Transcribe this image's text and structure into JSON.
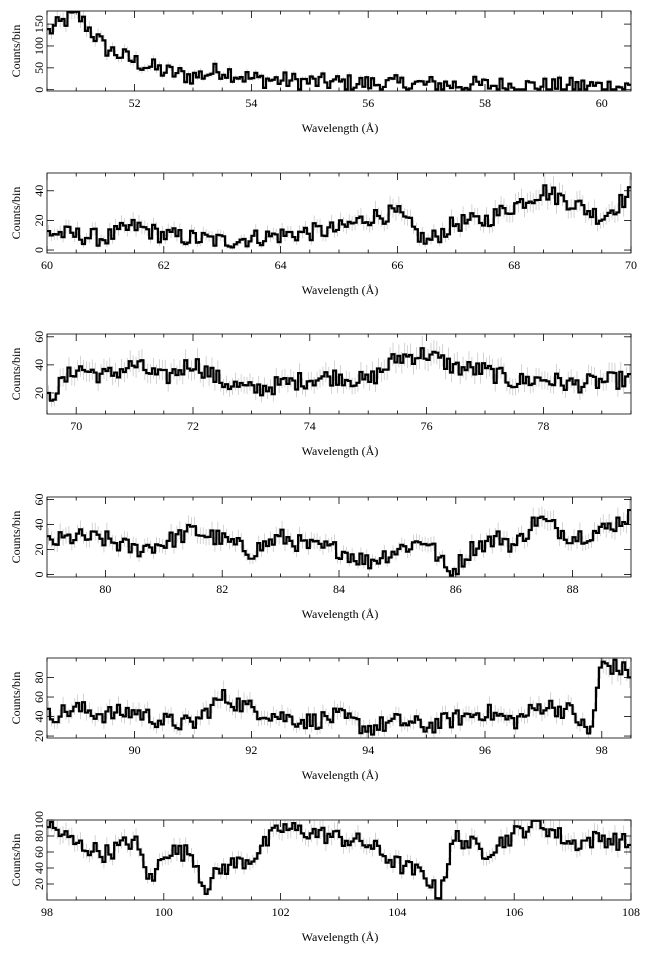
{
  "chart_data": [
    {
      "type": "line",
      "style": "step",
      "xlabel": "Wavelength (Å)",
      "ylabel": "Counts/bin",
      "xlim": [
        50.5,
        60.5
      ],
      "ylim": [
        -3,
        180
      ],
      "xticks": [
        52,
        54,
        56,
        58,
        60
      ],
      "yticks": [
        0,
        50,
        100,
        150
      ],
      "series_color": "#000000",
      "error_color": "#c8c8c8",
      "x": [
        50.5,
        51.0,
        51.5,
        52.0,
        52.5,
        53.0,
        53.5,
        54.0,
        55.0,
        56.0,
        57.0,
        58.0,
        59.0,
        60.0,
        60.5
      ],
      "y": [
        130,
        175,
        95,
        65,
        42,
        30,
        45,
        25,
        18,
        14,
        12,
        10,
        8,
        8,
        6
      ]
    },
    {
      "type": "line",
      "style": "step",
      "xlabel": "Wavelength (Å)",
      "ylabel": "Counts/bin",
      "xlim": [
        60,
        70
      ],
      "ylim": [
        -2,
        52
      ],
      "xticks": [
        60,
        62,
        64,
        66,
        68,
        70
      ],
      "yticks": [
        0,
        20,
        40
      ],
      "series_color": "#000000",
      "error_color": "#c8c8c8",
      "x": [
        60.0,
        61.0,
        61.5,
        62.0,
        63.0,
        63.5,
        64.0,
        65.0,
        65.5,
        66.0,
        66.5,
        67.0,
        67.5,
        68.0,
        68.5,
        69.0,
        69.5,
        70.0
      ],
      "y": [
        12,
        8,
        16,
        10,
        6,
        8,
        10,
        14,
        22,
        25,
        5,
        18,
        20,
        30,
        40,
        32,
        22,
        38
      ]
    },
    {
      "type": "line",
      "style": "step",
      "xlabel": "Wavelength (Å)",
      "ylabel": "Counts/bin",
      "xlim": [
        69.5,
        79.5
      ],
      "ylim": [
        5,
        62
      ],
      "xticks": [
        70,
        72,
        74,
        76,
        78
      ],
      "yticks": [
        20,
        40,
        60
      ],
      "series_color": "#000000",
      "error_color": "#c8c8c8",
      "x": [
        69.5,
        70.0,
        70.5,
        71.0,
        71.5,
        72.0,
        72.5,
        73.0,
        73.5,
        74.0,
        74.5,
        75.0,
        75.5,
        76.0,
        76.5,
        77.0,
        77.5,
        78.0,
        78.5,
        79.0,
        79.5
      ],
      "y": [
        15,
        38,
        32,
        40,
        30,
        42,
        28,
        22,
        26,
        30,
        32,
        28,
        45,
        48,
        38,
        36,
        28,
        30,
        26,
        28,
        30
      ]
    },
    {
      "type": "line",
      "style": "step",
      "xlabel": "Wavelength (Å)",
      "ylabel": "Counts/bin",
      "xlim": [
        79,
        89
      ],
      "ylim": [
        -2,
        62
      ],
      "xticks": [
        80,
        82,
        84,
        86,
        88
      ],
      "yticks": [
        0,
        20,
        40,
        60
      ],
      "series_color": "#000000",
      "error_color": "#c8c8c8",
      "x": [
        79.0,
        79.5,
        80.0,
        80.5,
        81.0,
        81.5,
        82.0,
        82.5,
        83.0,
        83.5,
        84.0,
        84.5,
        85.0,
        85.5,
        85.9,
        86.3,
        86.8,
        87.0,
        87.4,
        88.0,
        88.5,
        89.0
      ],
      "y": [
        25,
        30,
        28,
        20,
        25,
        35,
        28,
        18,
        30,
        22,
        20,
        10,
        20,
        28,
        0,
        22,
        30,
        22,
        45,
        30,
        35,
        48
      ]
    },
    {
      "type": "line",
      "style": "step",
      "xlabel": "Wavelength (Å)",
      "ylabel": "Counts/bin",
      "xlim": [
        88.5,
        98.5
      ],
      "ylim": [
        18,
        100
      ],
      "xticks": [
        90,
        92,
        94,
        96,
        98
      ],
      "yticks": [
        20,
        40,
        60,
        80
      ],
      "series_color": "#000000",
      "error_color": "#c8c8c8",
      "x": [
        88.5,
        89.0,
        89.5,
        90.0,
        90.5,
        91.0,
        91.5,
        92.0,
        92.5,
        93.0,
        93.5,
        94.0,
        94.5,
        95.0,
        95.5,
        96.0,
        96.5,
        97.0,
        97.5,
        97.8,
        98.0,
        98.5
      ],
      "y": [
        40,
        48,
        42,
        45,
        35,
        32,
        60,
        48,
        40,
        35,
        40,
        28,
        35,
        30,
        38,
        45,
        35,
        52,
        45,
        20,
        95,
        85
      ]
    },
    {
      "type": "line",
      "style": "step",
      "xlabel": "Wavelength (Å)",
      "ylabel": "Counts/bin",
      "xlim": [
        98,
        108
      ],
      "ylim": [
        0,
        100
      ],
      "xticks": [
        98,
        100,
        102,
        104,
        106,
        108
      ],
      "yticks": [
        20,
        40,
        60,
        80,
        100
      ],
      "series_color": "#000000",
      "error_color": "#c8c8c8",
      "x": [
        98.0,
        98.5,
        99.0,
        99.5,
        99.8,
        100.0,
        100.5,
        100.7,
        101.0,
        101.5,
        102.0,
        102.5,
        103.0,
        103.5,
        104.0,
        104.5,
        104.7,
        105.0,
        105.5,
        106.0,
        106.4,
        107.0,
        107.5,
        108.0
      ],
      "y": [
        95,
        70,
        58,
        75,
        20,
        62,
        58,
        15,
        40,
        52,
        90,
        85,
        78,
        70,
        45,
        30,
        5,
        80,
        60,
        82,
        98,
        70,
        78,
        70
      ]
    }
  ]
}
